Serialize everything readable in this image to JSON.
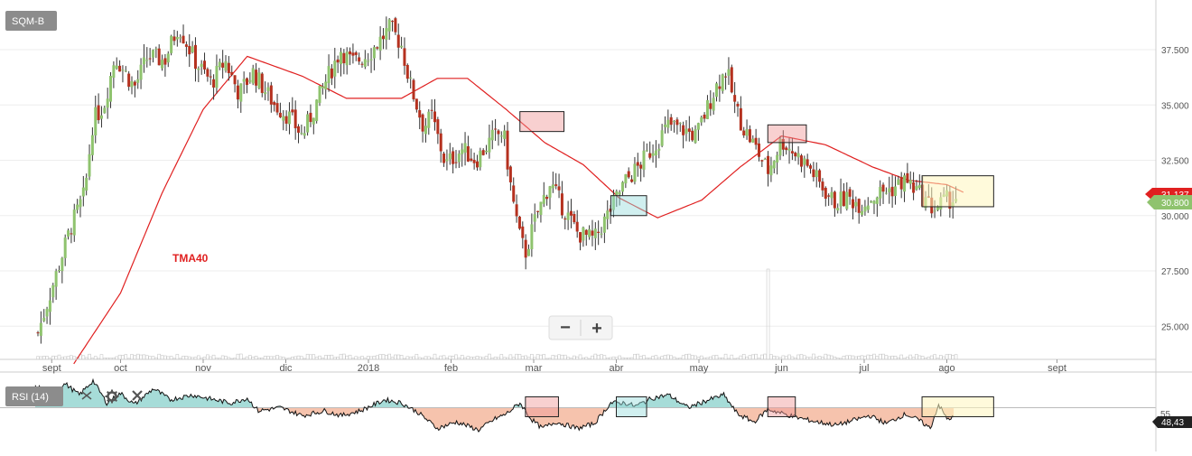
{
  "chart_data": {
    "type": "candlestick",
    "symbol": "SQM-B",
    "main": {
      "y_range": [
        23.5,
        39.5
      ],
      "y_ticks": [
        25.0,
        27.5,
        30.0,
        32.5,
        35.0,
        37.5
      ],
      "y_tick_labels": [
        "25.000",
        "27.500",
        "30.000",
        "32.500",
        "35.000",
        "37.500"
      ],
      "x_ticks": [
        "sept",
        "oct",
        "nov",
        "dic",
        "2018",
        "feb",
        "mar",
        "abr",
        "may",
        "jun",
        "jul",
        "ago",
        "sept"
      ],
      "x_tick_positions": [
        0.5,
        3,
        6,
        9,
        12,
        15,
        18,
        21,
        24,
        27,
        30,
        33,
        37
      ],
      "price_ohlc_pivots_month_index": [
        [
          0.0,
          24.7
        ],
        [
          1.2,
          29.5
        ],
        [
          1.7,
          31.0
        ],
        [
          2.0,
          34.3
        ],
        [
          2.4,
          35.0
        ],
        [
          2.8,
          37.2
        ],
        [
          3.5,
          35.8
        ],
        [
          4.0,
          37.2
        ],
        [
          4.6,
          37.0
        ],
        [
          5.1,
          38.6
        ],
        [
          5.7,
          37.0
        ],
        [
          6.3,
          36.0
        ],
        [
          6.8,
          37.0
        ],
        [
          7.3,
          35.5
        ],
        [
          7.8,
          36.5
        ],
        [
          8.6,
          35.0
        ],
        [
          9.1,
          34.5
        ],
        [
          9.6,
          33.6
        ],
        [
          10.5,
          36.2
        ],
        [
          11.0,
          37.5
        ],
        [
          11.4,
          36.9
        ],
        [
          12.0,
          37.3
        ],
        [
          12.8,
          38.5
        ],
        [
          13.2,
          37.7
        ],
        [
          13.5,
          36.0
        ],
        [
          14.0,
          34.0
        ],
        [
          14.3,
          34.5
        ],
        [
          14.8,
          32.3
        ],
        [
          15.4,
          33.0
        ],
        [
          15.9,
          32.5
        ],
        [
          16.5,
          33.5
        ],
        [
          16.9,
          33.8
        ],
        [
          17.2,
          31.0
        ],
        [
          17.5,
          29.0
        ],
        [
          17.7,
          28.3
        ],
        [
          18.1,
          30.0
        ],
        [
          18.6,
          31.5
        ],
        [
          19.0,
          30.5
        ],
        [
          19.6,
          29.2
        ],
        [
          20.2,
          28.9
        ],
        [
          20.8,
          30.3
        ],
        [
          21.3,
          31.5
        ],
        [
          21.8,
          32.2
        ],
        [
          22.4,
          33.2
        ],
        [
          22.9,
          34.1
        ],
        [
          23.4,
          33.9
        ],
        [
          23.9,
          33.6
        ],
        [
          24.6,
          35.8
        ],
        [
          25.0,
          36.6
        ],
        [
          25.3,
          35.0
        ],
        [
          25.6,
          34.0
        ],
        [
          26.0,
          33.2
        ],
        [
          26.5,
          32.0
        ],
        [
          27.0,
          33.4
        ],
        [
          27.5,
          32.8
        ],
        [
          28.0,
          32.2
        ],
        [
          28.4,
          31.4
        ],
        [
          28.9,
          30.6
        ],
        [
          29.4,
          30.8
        ],
        [
          29.9,
          30.5
        ],
        [
          30.5,
          31.0
        ],
        [
          31.0,
          31.2
        ],
        [
          31.5,
          31.6
        ],
        [
          32.0,
          31.0
        ],
        [
          32.5,
          30.3
        ],
        [
          33.0,
          30.7
        ],
        [
          33.3,
          30.8
        ]
      ],
      "tma40_pivots_month_index": [
        [
          1.3,
          23.3
        ],
        [
          3.0,
          26.5
        ],
        [
          4.5,
          31.0
        ],
        [
          6.0,
          34.8
        ],
        [
          7.6,
          37.2
        ],
        [
          9.6,
          36.3
        ],
        [
          11.2,
          35.3
        ],
        [
          13.2,
          35.3
        ],
        [
          14.5,
          36.2
        ],
        [
          15.6,
          36.2
        ],
        [
          17.0,
          34.8
        ],
        [
          18.4,
          33.3
        ],
        [
          19.8,
          32.3
        ],
        [
          21.1,
          30.8
        ],
        [
          22.5,
          29.9
        ],
        [
          24.1,
          30.7
        ],
        [
          25.5,
          32.2
        ],
        [
          27.0,
          33.6
        ],
        [
          28.6,
          33.2
        ],
        [
          30.3,
          32.2
        ],
        [
          31.6,
          31.6
        ],
        [
          33.0,
          31.4
        ],
        [
          33.7,
          31.0
        ]
      ],
      "highlight_boxes": [
        {
          "from_month": 17.5,
          "to_month": 19.1,
          "y_low": 33.8,
          "y_high": 34.7,
          "style": "red"
        },
        {
          "from_month": 20.8,
          "to_month": 22.1,
          "y_low": 30.0,
          "y_high": 30.9,
          "style": "teal"
        },
        {
          "from_month": 26.5,
          "to_month": 27.9,
          "y_low": 33.3,
          "y_high": 34.1,
          "style": "red"
        },
        {
          "from_month": 32.1,
          "to_month": 34.7,
          "y_low": 30.4,
          "y_high": 31.8,
          "style": "yellow"
        }
      ],
      "volume_spike_month": 26.5
    },
    "labels": {
      "tma_label": "TMA40",
      "last_price_label": "30.800",
      "ma_price_label": "31.137",
      "colors": {
        "up": "#8fc36e",
        "down": "#b5311f",
        "tma": "#e02020",
        "up_badge": "#8fc36e",
        "ma_badge": "#e02020"
      }
    },
    "rsi": {
      "label": "RSI (14)",
      "level": 55,
      "level_label": "55",
      "current_label": "48,43",
      "range": [
        32,
        74
      ],
      "pivots_month_index": [
        [
          -0.1,
          68
        ],
        [
          0.5,
          66
        ],
        [
          1.0,
          70
        ],
        [
          1.5,
          63
        ],
        [
          2.0,
          72
        ],
        [
          2.5,
          58
        ],
        [
          3.0,
          64
        ],
        [
          3.5,
          57
        ],
        [
          4.2,
          67
        ],
        [
          4.8,
          60
        ],
        [
          5.6,
          63
        ],
        [
          6.4,
          60
        ],
        [
          7.0,
          58
        ],
        [
          7.6,
          61
        ],
        [
          8.0,
          53
        ],
        [
          8.8,
          55
        ],
        [
          9.6,
          50
        ],
        [
          10.4,
          53
        ],
        [
          11.0,
          50
        ],
        [
          11.7,
          53
        ],
        [
          12.6,
          60
        ],
        [
          13.2,
          58
        ],
        [
          13.8,
          52
        ],
        [
          14.5,
          42
        ],
        [
          15.2,
          46
        ],
        [
          16.0,
          41
        ],
        [
          16.6,
          48
        ],
        [
          17.0,
          51
        ],
        [
          17.5,
          58
        ],
        [
          17.9,
          48
        ],
        [
          18.3,
          42
        ],
        [
          18.8,
          46
        ],
        [
          19.6,
          42
        ],
        [
          20.2,
          45
        ],
        [
          20.8,
          58
        ],
        [
          21.3,
          58
        ],
        [
          21.7,
          56
        ],
        [
          22.3,
          61
        ],
        [
          22.9,
          63
        ],
        [
          23.6,
          55
        ],
        [
          24.2,
          59
        ],
        [
          24.9,
          63
        ],
        [
          25.4,
          51
        ],
        [
          26.0,
          46
        ],
        [
          26.5,
          54
        ],
        [
          26.9,
          52
        ],
        [
          27.5,
          49
        ],
        [
          28.3,
          46
        ],
        [
          29.0,
          44
        ],
        [
          29.6,
          47
        ],
        [
          30.2,
          50
        ],
        [
          30.8,
          45
        ],
        [
          31.5,
          51
        ],
        [
          32.0,
          47
        ],
        [
          32.4,
          42
        ],
        [
          32.7,
          57
        ],
        [
          33.0,
          48
        ],
        [
          33.3,
          49
        ]
      ],
      "highlight_boxes": [
        {
          "from_month": 17.7,
          "to_month": 18.9,
          "style": "red"
        },
        {
          "from_month": 21.0,
          "to_month": 22.1,
          "style": "teal"
        },
        {
          "from_month": 26.5,
          "to_month": 27.5,
          "style": "red"
        },
        {
          "from_month": 32.1,
          "to_month": 34.7,
          "style": "yellow"
        }
      ]
    }
  },
  "ui": {
    "zoom_out_glyph": "−",
    "zoom_in_glyph": "+",
    "gear_icon": "gear-icon",
    "tools_icon": "tools-icon",
    "close_icon": "close-icon"
  }
}
